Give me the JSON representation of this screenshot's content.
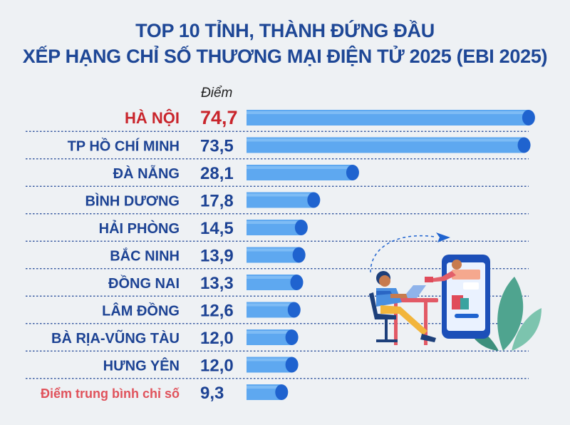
{
  "title_line1": "TOP 10 TỈNH, THÀNH ĐỨNG ĐẦU",
  "title_line2": "XẾP HẠNG CHỈ SỐ THƯƠNG MẠI ĐIỆN TỬ 2025 (EBI 2025)",
  "value_unit_label": "Điểm",
  "colors": {
    "title": "#1e4796",
    "highlight": "#c9252c",
    "average_label": "#e0525b",
    "bar_body": "#5ea8f0",
    "bar_cap": "#1f63cf"
  },
  "illustration_icon": "online-shopping-illustration",
  "chart_data": {
    "type": "bar",
    "orientation": "horizontal",
    "title": "TOP 10 TỈNH, THÀNH ĐỨNG ĐẦU XẾP HẠNG CHỈ SỐ THƯƠNG MẠI ĐIỆN TỬ 2025 (EBI 2025)",
    "xlabel": "Điểm",
    "ylabel": "",
    "xlim": [
      0,
      80
    ],
    "grid": false,
    "legend": "none",
    "categories": [
      "HÀ NỘI",
      "TP HỒ CHÍ MINH",
      "ĐÀ NẴNG",
      "BÌNH DƯƠNG",
      "HẢI PHÒNG",
      "BẮC NINH",
      "ĐỒNG NAI",
      "LÂM ĐỒNG",
      "BÀ RỊA-VŨNG TÀU",
      "HƯNG YÊN",
      "Điểm trung bình chỉ số"
    ],
    "values": [
      74.7,
      73.5,
      28.1,
      17.8,
      14.5,
      13.9,
      13.3,
      12.6,
      12.0,
      12.0,
      9.3
    ],
    "value_labels": [
      "74,7",
      "73,5",
      "28,1",
      "17,8",
      "14,5",
      "13,9",
      "13,3",
      "12,6",
      "12,0",
      "12,0",
      "9,3"
    ]
  }
}
